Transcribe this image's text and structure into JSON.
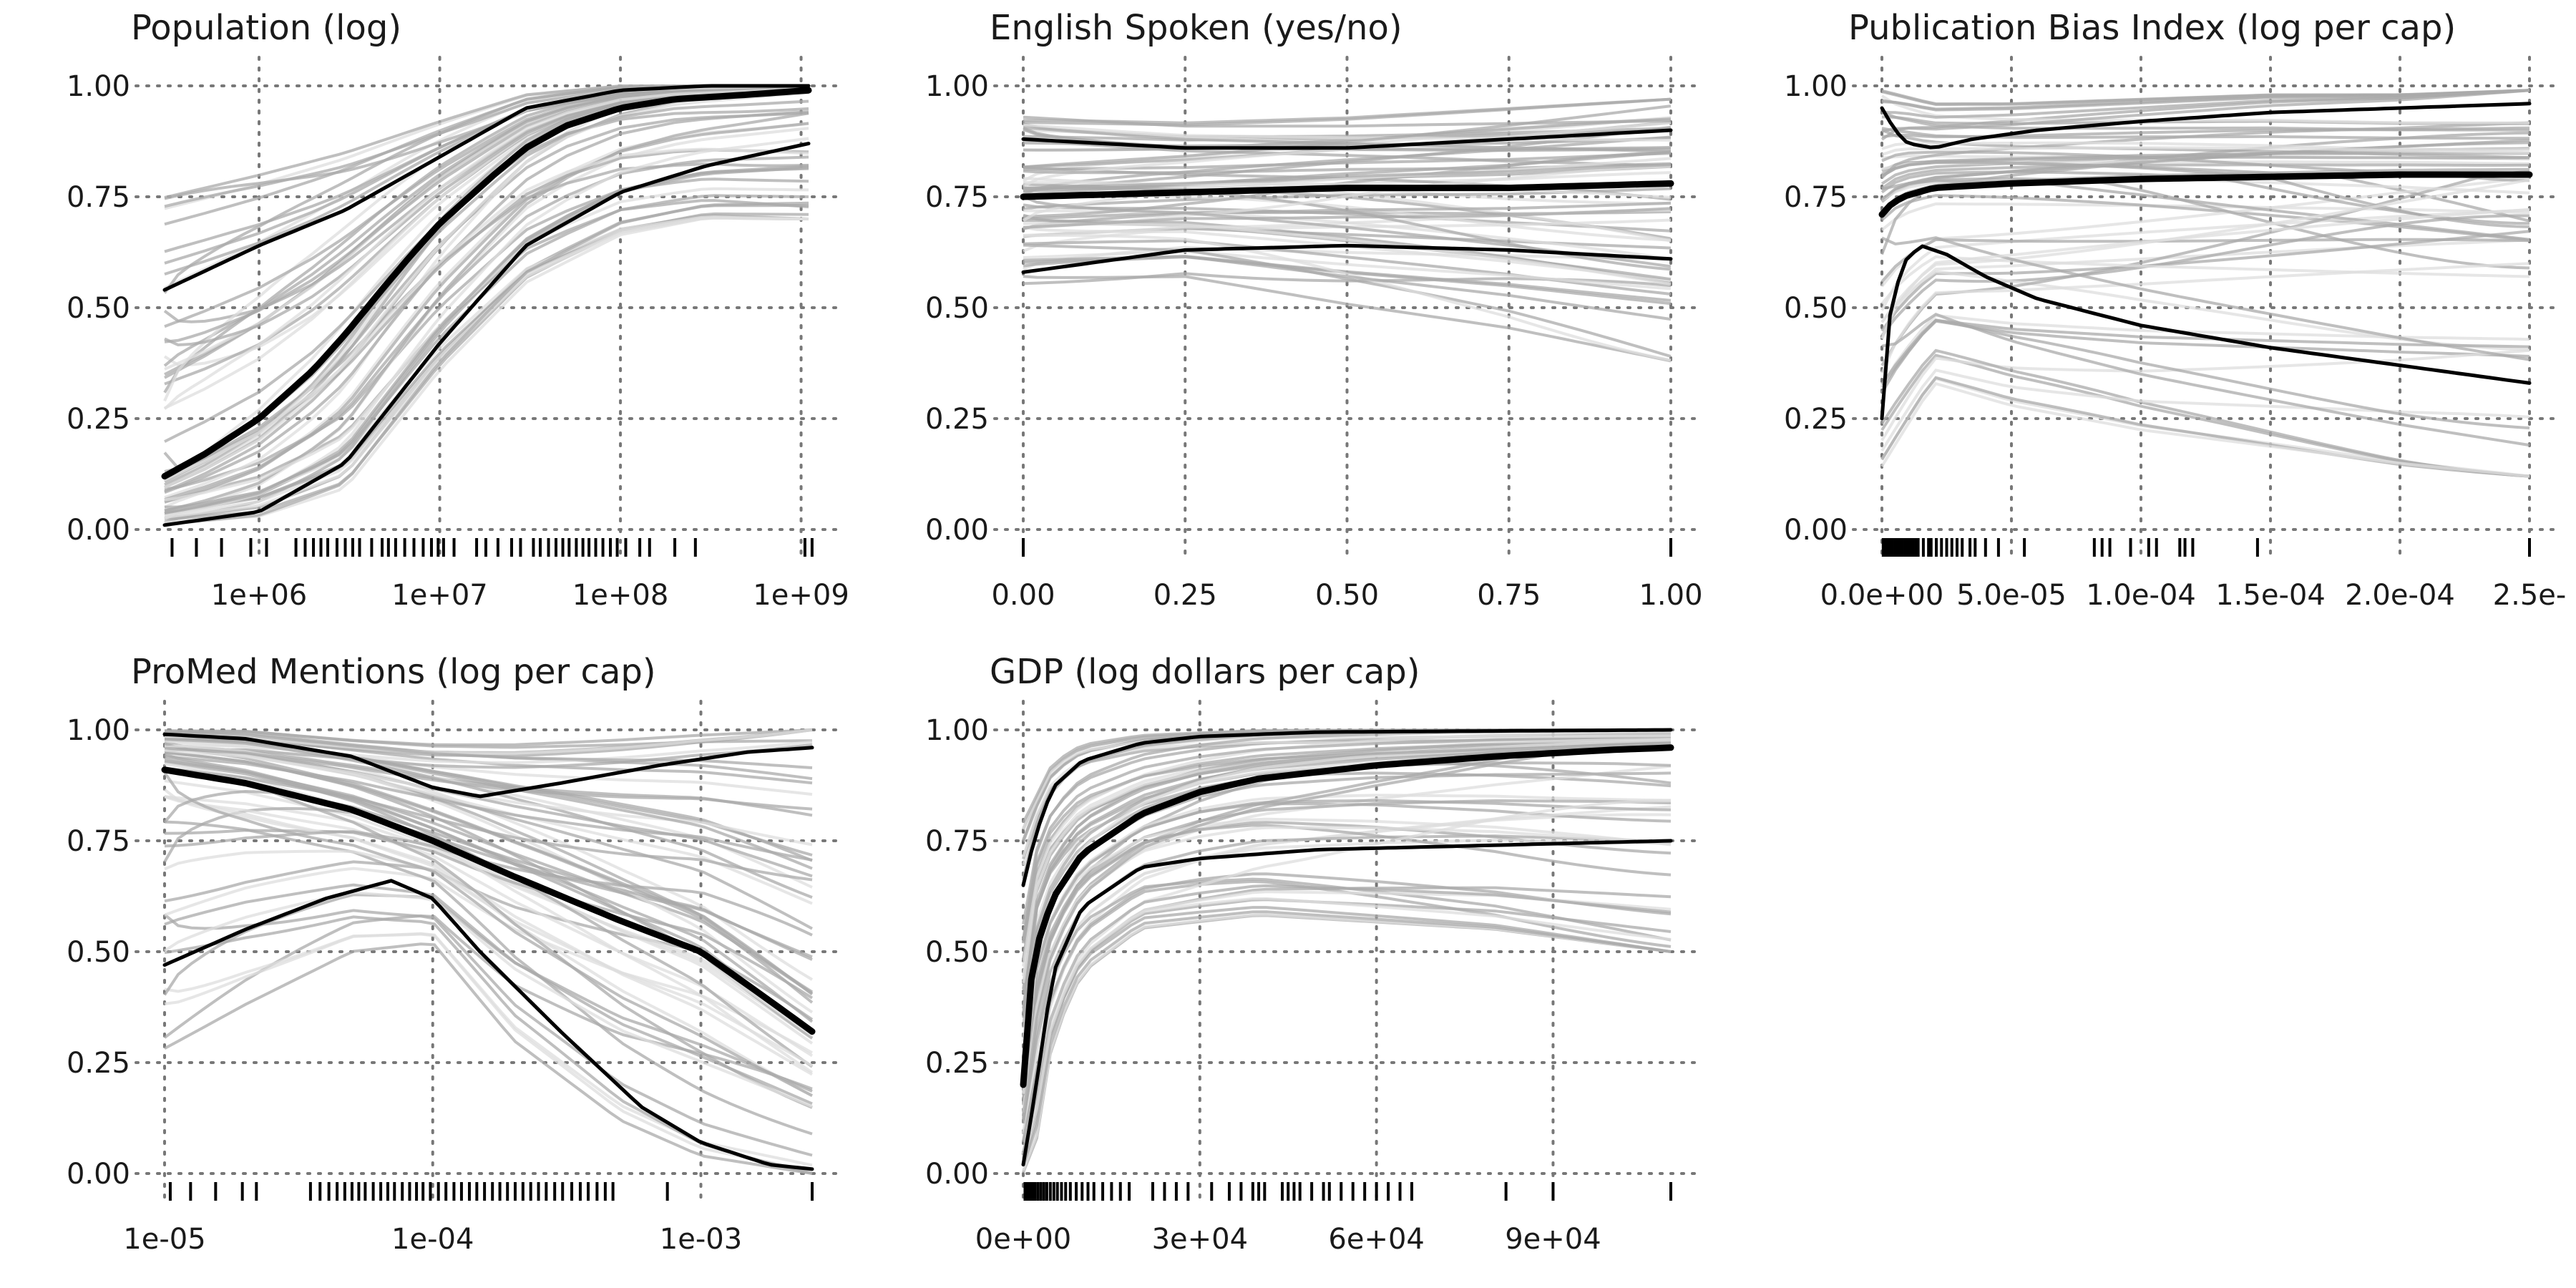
{
  "chart_data": [
    {
      "type": "line",
      "title": "Population (log)",
      "x_scale": "log",
      "xlim": [
        300000,
        1100000000
      ],
      "ylim": [
        0,
        1
      ],
      "x_ticks": [
        1000000,
        10000000,
        100000000,
        1000000000
      ],
      "x_tick_labels": [
        "1e+06",
        "1e+07",
        "1e+08",
        "1e+09"
      ],
      "y_ticks": [
        0,
        0.25,
        0.5,
        0.75,
        1
      ],
      "y_tick_labels": [
        "0.00",
        "0.25",
        "0.50",
        "0.75",
        "1.00"
      ],
      "grid": true,
      "rug": [
        330000,
        450000,
        620000,
        900000,
        1100000,
        1600000,
        1800000,
        2000000,
        2200000,
        2400000,
        2700000,
        3000000,
        3300000,
        3600000,
        4200000,
        4800000,
        5200000,
        5700000,
        6400000,
        7200000,
        8100000,
        9000000,
        9800000,
        10500000,
        12000000,
        16000000,
        18000000,
        21000000,
        25000000,
        28000000,
        33000000,
        36000000,
        40000000,
        44000000,
        48000000,
        52000000,
        57000000,
        62000000,
        67000000,
        73000000,
        80000000,
        88000000,
        96000000,
        107000000,
        128000000,
        145000000,
        200000000,
        260000000,
        1050000000,
        1150000000
      ],
      "series": [
        {
          "role": "central",
          "x": [
            300000,
            500000,
            1000000,
            2000000,
            3000000,
            5000000,
            7000000,
            10000000,
            20000000,
            30000000,
            50000000,
            100000000,
            200000000,
            500000000,
            1100000000
          ],
          "y": [
            0.12,
            0.17,
            0.25,
            0.36,
            0.44,
            0.55,
            0.62,
            0.69,
            0.8,
            0.86,
            0.91,
            0.95,
            0.97,
            0.98,
            0.99
          ]
        },
        {
          "role": "upper",
          "x": [
            300000,
            1000000,
            3000000,
            10000000,
            30000000,
            100000000,
            300000000,
            1100000000
          ],
          "y": [
            0.54,
            0.64,
            0.72,
            0.84,
            0.95,
            0.99,
            1.0,
            1.0
          ]
        },
        {
          "role": "lower",
          "x": [
            300000,
            1000000,
            3000000,
            10000000,
            30000000,
            100000000,
            300000000,
            1100000000
          ],
          "y": [
            0.01,
            0.04,
            0.15,
            0.42,
            0.64,
            0.76,
            0.82,
            0.87
          ]
        },
        {
          "role": "draws",
          "x": [
            300000,
            1000000,
            3000000,
            10000000,
            30000000,
            100000000,
            300000000,
            1100000000
          ],
          "y_min": [
            0.01,
            0.02,
            0.08,
            0.35,
            0.55,
            0.66,
            0.7,
            0.7
          ],
          "y_max": [
            0.75,
            0.8,
            0.85,
            0.92,
            0.98,
            1.0,
            1.0,
            1.0
          ]
        }
      ]
    },
    {
      "type": "line",
      "title": "English Spoken (yes/no)",
      "x_scale": "linear",
      "xlim": [
        0,
        1
      ],
      "ylim": [
        0,
        1
      ],
      "x_ticks": [
        0,
        0.25,
        0.5,
        0.75,
        1
      ],
      "x_tick_labels": [
        "0.00",
        "0.25",
        "0.50",
        "0.75",
        "1.00"
      ],
      "y_ticks": [
        0,
        0.25,
        0.5,
        0.75,
        1
      ],
      "y_tick_labels": [
        "0.00",
        "0.25",
        "0.50",
        "0.75",
        "1.00"
      ],
      "grid": true,
      "rug": [
        0,
        1
      ],
      "series": [
        {
          "role": "central",
          "x": [
            0,
            0.25,
            0.5,
            0.75,
            1
          ],
          "y": [
            0.75,
            0.76,
            0.77,
            0.77,
            0.78
          ]
        },
        {
          "role": "upper",
          "x": [
            0,
            0.25,
            0.5,
            0.75,
            1
          ],
          "y": [
            0.88,
            0.86,
            0.86,
            0.88,
            0.9
          ]
        },
        {
          "role": "lower",
          "x": [
            0,
            0.25,
            0.5,
            0.75,
            1
          ],
          "y": [
            0.58,
            0.63,
            0.64,
            0.63,
            0.61
          ]
        },
        {
          "role": "draws",
          "x": [
            0,
            0.25,
            0.5,
            0.75,
            1
          ],
          "y_min": [
            0.55,
            0.56,
            0.5,
            0.45,
            0.38
          ],
          "y_max": [
            0.93,
            0.92,
            0.93,
            0.95,
            0.97
          ]
        }
      ]
    },
    {
      "type": "line",
      "title": "Publication Bias Index (log per cap)",
      "x_scale": "linear",
      "xlim": [
        0,
        0.00025
      ],
      "ylim": [
        0,
        1
      ],
      "x_ticks": [
        0,
        5e-05,
        0.0001,
        0.00015,
        0.0002,
        0.00025
      ],
      "x_tick_labels": [
        "0.0e+00",
        "5.0e-05",
        "1.0e-04",
        "1.5e-04",
        "2.0e-04",
        "2.5e-"
      ],
      "y_ticks": [
        0,
        0.25,
        0.5,
        0.75,
        1
      ],
      "y_tick_labels": [
        "0.00",
        "0.25",
        "0.50",
        "0.75",
        "1.00"
      ],
      "grid": true,
      "rug": [
        5e-07,
        1e-06,
        1.5e-06,
        2e-06,
        3e-06,
        4e-06,
        5e-06,
        6e-06,
        7e-06,
        8e-06,
        9e-06,
        1e-05,
        1.1e-05,
        1.2e-05,
        1.3e-05,
        1.4e-05,
        1.6e-05,
        1.8e-05,
        1.9e-05,
        2.1e-05,
        2.3e-05,
        2.5e-05,
        2.7e-05,
        2.9e-05,
        3.1e-05,
        3.4e-05,
        3.6e-05,
        4e-05,
        4.5e-05,
        5.5e-05,
        8.2e-05,
        8.5e-05,
        8.8e-05,
        9.6e-05,
        0.000103,
        0.000106,
        0.000115,
        0.000117,
        0.00012,
        0.000145,
        0.00025
      ],
      "series": [
        {
          "role": "central",
          "x": [
            0,
            3e-06,
            8e-06,
            2e-05,
            5e-05,
            0.0001,
            0.00015,
            0.0002,
            0.00025
          ],
          "y": [
            0.71,
            0.73,
            0.75,
            0.77,
            0.78,
            0.79,
            0.795,
            0.8,
            0.8
          ]
        },
        {
          "role": "upper",
          "x": [
            0,
            5e-06,
            1e-05,
            2e-05,
            3.5e-05,
            6e-05,
            0.0001,
            0.00015,
            0.0002,
            0.00025
          ],
          "y": [
            0.95,
            0.9,
            0.87,
            0.86,
            0.88,
            0.9,
            0.92,
            0.94,
            0.95,
            0.96
          ]
        },
        {
          "role": "lower",
          "x": [
            0,
            3e-06,
            8e-06,
            1.5e-05,
            2.5e-05,
            4e-05,
            6e-05,
            0.0001,
            0.00015,
            0.0002,
            0.00025
          ],
          "y": [
            0.25,
            0.48,
            0.6,
            0.64,
            0.62,
            0.57,
            0.52,
            0.46,
            0.41,
            0.37,
            0.33
          ]
        },
        {
          "role": "draws",
          "x": [
            0,
            2e-05,
            5e-05,
            0.0001,
            0.00015,
            0.0002,
            0.00025
          ],
          "y_min": [
            0.1,
            0.3,
            0.25,
            0.2,
            0.17,
            0.14,
            0.12
          ],
          "y_max": [
            0.99,
            0.96,
            0.96,
            0.97,
            0.98,
            0.98,
            0.99
          ]
        }
      ]
    },
    {
      "type": "line",
      "title": "ProMed Mentions (log per cap)",
      "x_scale": "log",
      "xlim": [
        1e-05,
        0.0026
      ],
      "ylim": [
        0,
        1
      ],
      "x_ticks": [
        1e-05,
        0.0001,
        0.001
      ],
      "x_tick_labels": [
        "1e-05",
        "1e-04",
        "1e-03"
      ],
      "y_ticks": [
        0,
        0.25,
        0.5,
        0.75,
        1
      ],
      "y_tick_labels": [
        "0.00",
        "0.25",
        "0.50",
        "0.75",
        "1.00"
      ],
      "grid": true,
      "rug": [
        1.05e-05,
        1.25e-05,
        1.55e-05,
        1.95e-05,
        2.2e-05,
        3.5e-05,
        3.8e-05,
        4.1e-05,
        4.4e-05,
        4.7e-05,
        5e-05,
        5.3e-05,
        5.6e-05,
        6e-05,
        6.4e-05,
        6.8e-05,
        7.2e-05,
        7.7e-05,
        8.2e-05,
        8.7e-05,
        9.2e-05,
        9.8e-05,
        0.000105,
        0.000112,
        0.00012,
        0.000128,
        0.000137,
        0.000146,
        0.000156,
        0.000167,
        0.000178,
        0.00019,
        0.000203,
        0.000217,
        0.000232,
        0.000248,
        0.000265,
        0.000285,
        0.000305,
        0.00033,
        0.000355,
        0.00038,
        0.00041,
        0.00044,
        0.00047,
        0.00075,
        0.0026
      ],
      "series": [
        {
          "role": "central",
          "x": [
            1e-05,
            2e-05,
            5e-05,
            0.0001,
            0.0002,
            0.0005,
            0.001,
            0.0018,
            0.0026
          ],
          "y": [
            0.91,
            0.88,
            0.82,
            0.75,
            0.67,
            0.57,
            0.5,
            0.39,
            0.32
          ]
        },
        {
          "role": "upper",
          "x": [
            1e-05,
            2e-05,
            5e-05,
            0.0001,
            0.00015,
            0.0003,
            0.0007,
            0.0015,
            0.0026
          ],
          "y": [
            0.99,
            0.98,
            0.94,
            0.87,
            0.85,
            0.88,
            0.92,
            0.95,
            0.96
          ]
        },
        {
          "role": "lower",
          "x": [
            1e-05,
            2e-05,
            4e-05,
            7e-05,
            0.0001,
            0.00015,
            0.0003,
            0.0006,
            0.001,
            0.0018,
            0.0026
          ],
          "y": [
            0.47,
            0.55,
            0.62,
            0.66,
            0.62,
            0.5,
            0.32,
            0.15,
            0.07,
            0.02,
            0.01
          ]
        },
        {
          "role": "draws",
          "x": [
            1e-05,
            2e-05,
            5e-05,
            0.0001,
            0.0002,
            0.0005,
            0.001,
            0.0026
          ],
          "y_min": [
            0.28,
            0.38,
            0.5,
            0.52,
            0.3,
            0.12,
            0.04,
            0.0
          ],
          "y_max": [
            1.0,
            1.0,
            0.98,
            0.97,
            0.97,
            0.98,
            0.99,
            1.0
          ]
        }
      ]
    },
    {
      "type": "line",
      "title": "GDP (log dollars per cap)",
      "x_scale": "linear",
      "xlim": [
        0,
        110000
      ],
      "ylim": [
        0,
        1
      ],
      "x_ticks": [
        0,
        30000,
        60000,
        90000
      ],
      "x_tick_labels": [
        "0e+00",
        "3e+04",
        "6e+04",
        "9e+04"
      ],
      "y_ticks": [
        0,
        0.25,
        0.5,
        0.75,
        1
      ],
      "y_tick_labels": [
        "0.00",
        "0.25",
        "0.50",
        "0.75",
        "1.00"
      ],
      "grid": true,
      "rug": [
        300,
        600,
        900,
        1200,
        1600,
        2000,
        2500,
        3000,
        3500,
        4000,
        4600,
        5200,
        5800,
        6500,
        7200,
        8000,
        9000,
        10000,
        11000,
        12000,
        13500,
        15000,
        16500,
        18000,
        22000,
        24000,
        26000,
        28000,
        32000,
        35000,
        37000,
        39000,
        40000,
        41000,
        44000,
        45000,
        46000,
        47000,
        49000,
        51000,
        52000,
        54000,
        56000,
        58000,
        60000,
        62000,
        64000,
        66000,
        82000,
        90000,
        110000
      ],
      "series": [
        {
          "role": "central",
          "x": [
            0,
            1000,
            2000,
            5000,
            10000,
            20000,
            30000,
            40000,
            60000,
            80000,
            100000,
            110000
          ],
          "y": [
            0.2,
            0.4,
            0.5,
            0.62,
            0.72,
            0.81,
            0.86,
            0.89,
            0.92,
            0.94,
            0.955,
            0.96
          ]
        },
        {
          "role": "upper",
          "x": [
            0,
            2000,
            5000,
            10000,
            20000,
            30000,
            50000,
            110000
          ],
          "y": [
            0.65,
            0.76,
            0.87,
            0.93,
            0.97,
            0.985,
            0.995,
            1.0
          ]
        },
        {
          "role": "lower",
          "x": [
            0,
            2000,
            5000,
            10000,
            20000,
            30000,
            50000,
            80000,
            110000
          ],
          "y": [
            0.02,
            0.18,
            0.45,
            0.6,
            0.69,
            0.71,
            0.73,
            0.74,
            0.75
          ]
        },
        {
          "role": "draws",
          "x": [
            0,
            2000,
            5000,
            10000,
            20000,
            40000,
            80000,
            110000
          ],
          "y_min": [
            0.0,
            0.05,
            0.3,
            0.45,
            0.55,
            0.58,
            0.55,
            0.5
          ],
          "y_max": [
            0.8,
            0.85,
            0.93,
            0.97,
            0.99,
            1.0,
            1.0,
            1.0
          ]
        }
      ]
    }
  ]
}
